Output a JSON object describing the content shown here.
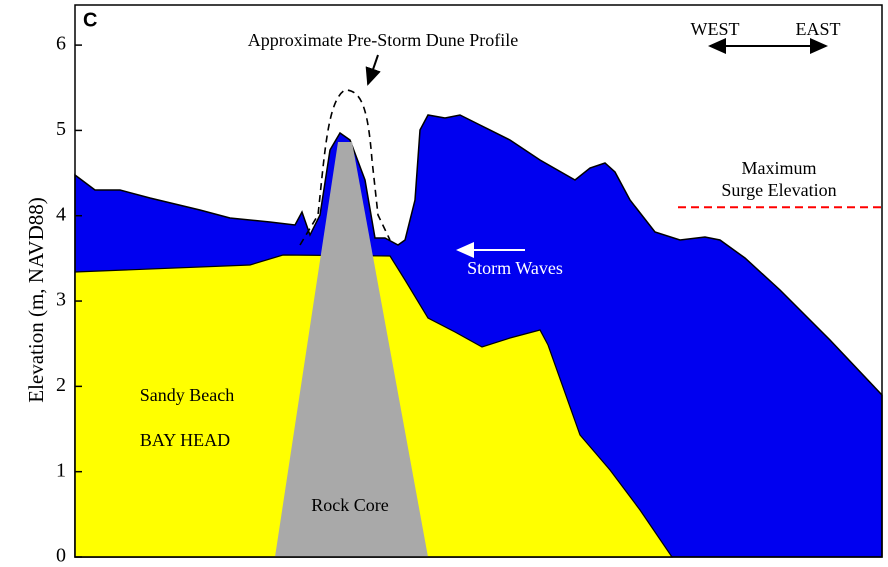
{
  "chart_data": {
    "type": "profile",
    "panel_label": "C",
    "y_label": "Elevation (m, NAVD88)",
    "ylim": [
      0,
      6.47
    ],
    "yticks": [
      0,
      1,
      2,
      3,
      4,
      5,
      6
    ],
    "surge_elevation": 4.1,
    "surge_color": "#ff0000",
    "annotations": {
      "dune": "Approximate Pre-Storm Dune Profile",
      "west": "WEST",
      "east": "EAST",
      "surge_line1": "Maximum",
      "surge_line2": "Surge Elevation",
      "waves": "Storm Waves",
      "beach": "Sandy Beach",
      "place": "BAY HEAD",
      "core": "Rock Core"
    }
  }
}
